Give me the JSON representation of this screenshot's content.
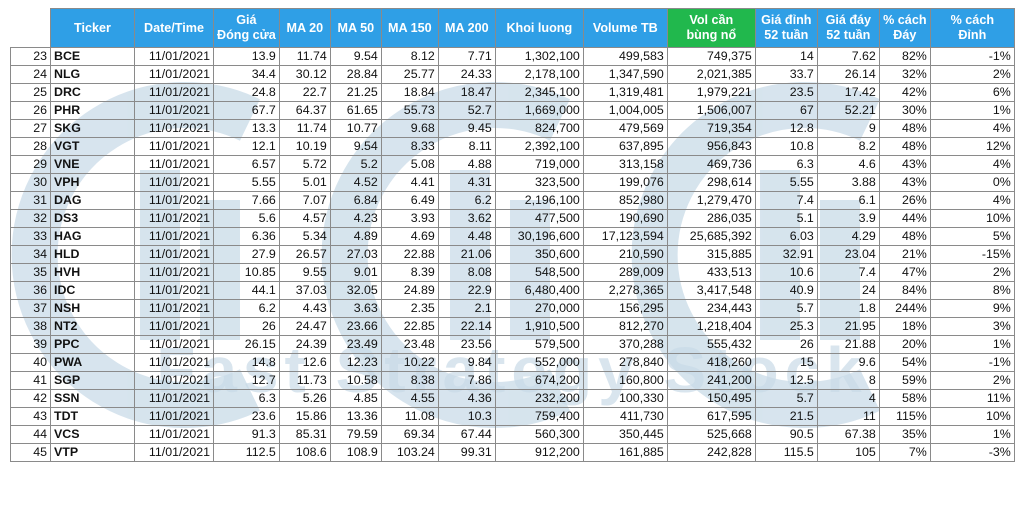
{
  "header": {
    "index": "",
    "ticker": "Ticker",
    "date": "Date/Time",
    "close_line1": "Giá",
    "close_line2": "Đóng cửa",
    "ma20": "MA 20",
    "ma50": "MA 50",
    "ma150": "MA 150",
    "ma200": "MA 200",
    "volume": "Khoi luong",
    "volume_avg": "Volume TB",
    "breakout_line1": "Vol cần",
    "breakout_line2": "bùng nổ",
    "high52_line1": "Giá đỉnh",
    "high52_line2": "52 tuần",
    "low52_line1": "Giá đáy",
    "low52_line2": "52 tuần",
    "pct_low_line1": "% cách",
    "pct_low_line2": "Đáy",
    "pct_high_line1": "% cách",
    "pct_high_line2": "Đỉnh"
  },
  "colors": {
    "header_blue": "#2f9fe6",
    "header_green": "#21b84d",
    "watermark": "#c9dbe8"
  },
  "watermark": {
    "text": "Fast Strategy Stock"
  },
  "rows": [
    {
      "idx": "23",
      "ticker": "BCE",
      "date": "11/01/2021",
      "close": "13.9",
      "ma20": "11.74",
      "ma50": "9.54",
      "ma150": "8.12",
      "ma200": "7.71",
      "vol": "1,302,100",
      "vol_avg": "499,583",
      "vol_break": "749,375",
      "high52": "14",
      "low52": "7.62",
      "pct_low": "82%",
      "pct_high": "-1%"
    },
    {
      "idx": "24",
      "ticker": "NLG",
      "date": "11/01/2021",
      "close": "34.4",
      "ma20": "30.12",
      "ma50": "28.84",
      "ma150": "25.77",
      "ma200": "24.33",
      "vol": "2,178,100",
      "vol_avg": "1,347,590",
      "vol_break": "2,021,385",
      "high52": "33.7",
      "low52": "26.14",
      "pct_low": "32%",
      "pct_high": "2%"
    },
    {
      "idx": "25",
      "ticker": "DRC",
      "date": "11/01/2021",
      "close": "24.8",
      "ma20": "22.7",
      "ma50": "21.25",
      "ma150": "18.84",
      "ma200": "18.47",
      "vol": "2,345,100",
      "vol_avg": "1,319,481",
      "vol_break": "1,979,221",
      "high52": "23.5",
      "low52": "17.42",
      "pct_low": "42%",
      "pct_high": "6%"
    },
    {
      "idx": "26",
      "ticker": "PHR",
      "date": "11/01/2021",
      "close": "67.7",
      "ma20": "64.37",
      "ma50": "61.65",
      "ma150": "55.73",
      "ma200": "52.7",
      "vol": "1,669,000",
      "vol_avg": "1,004,005",
      "vol_break": "1,506,007",
      "high52": "67",
      "low52": "52.21",
      "pct_low": "30%",
      "pct_high": "1%"
    },
    {
      "idx": "27",
      "ticker": "SKG",
      "date": "11/01/2021",
      "close": "13.3",
      "ma20": "11.74",
      "ma50": "10.77",
      "ma150": "9.68",
      "ma200": "9.45",
      "vol": "824,700",
      "vol_avg": "479,569",
      "vol_break": "719,354",
      "high52": "12.8",
      "low52": "9",
      "pct_low": "48%",
      "pct_high": "4%"
    },
    {
      "idx": "28",
      "ticker": "VGT",
      "date": "11/01/2021",
      "close": "12.1",
      "ma20": "10.19",
      "ma50": "9.54",
      "ma150": "8.33",
      "ma200": "8.11",
      "vol": "2,392,100",
      "vol_avg": "637,895",
      "vol_break": "956,843",
      "high52": "10.8",
      "low52": "8.2",
      "pct_low": "48%",
      "pct_high": "12%"
    },
    {
      "idx": "29",
      "ticker": "VNE",
      "date": "11/01/2021",
      "close": "6.57",
      "ma20": "5.72",
      "ma50": "5.2",
      "ma150": "5.08",
      "ma200": "4.88",
      "vol": "719,000",
      "vol_avg": "313,158",
      "vol_break": "469,736",
      "high52": "6.3",
      "low52": "4.6",
      "pct_low": "43%",
      "pct_high": "4%"
    },
    {
      "idx": "30",
      "ticker": "VPH",
      "date": "11/01/2021",
      "close": "5.55",
      "ma20": "5.01",
      "ma50": "4.52",
      "ma150": "4.41",
      "ma200": "4.31",
      "vol": "323,500",
      "vol_avg": "199,076",
      "vol_break": "298,614",
      "high52": "5.55",
      "low52": "3.88",
      "pct_low": "43%",
      "pct_high": "0%"
    },
    {
      "idx": "31",
      "ticker": "DAG",
      "date": "11/01/2021",
      "close": "7.66",
      "ma20": "7.07",
      "ma50": "6.84",
      "ma150": "6.49",
      "ma200": "6.2",
      "vol": "2,196,100",
      "vol_avg": "852,980",
      "vol_break": "1,279,470",
      "high52": "7.4",
      "low52": "6.1",
      "pct_low": "26%",
      "pct_high": "4%"
    },
    {
      "idx": "32",
      "ticker": "DS3",
      "date": "11/01/2021",
      "close": "5.6",
      "ma20": "4.57",
      "ma50": "4.23",
      "ma150": "3.93",
      "ma200": "3.62",
      "vol": "477,500",
      "vol_avg": "190,690",
      "vol_break": "286,035",
      "high52": "5.1",
      "low52": "3.9",
      "pct_low": "44%",
      "pct_high": "10%"
    },
    {
      "idx": "33",
      "ticker": "HAG",
      "date": "11/01/2021",
      "close": "6.36",
      "ma20": "5.34",
      "ma50": "4.89",
      "ma150": "4.69",
      "ma200": "4.48",
      "vol": "30,196,600",
      "vol_avg": "17,123,594",
      "vol_break": "25,685,392",
      "high52": "6.03",
      "low52": "4.29",
      "pct_low": "48%",
      "pct_high": "5%"
    },
    {
      "idx": "34",
      "ticker": "HLD",
      "date": "11/01/2021",
      "close": "27.9",
      "ma20": "26.57",
      "ma50": "27.03",
      "ma150": "22.88",
      "ma200": "21.06",
      "vol": "350,600",
      "vol_avg": "210,590",
      "vol_break": "315,885",
      "high52": "32.91",
      "low52": "23.04",
      "pct_low": "21%",
      "pct_high": "-15%"
    },
    {
      "idx": "35",
      "ticker": "HVH",
      "date": "11/01/2021",
      "close": "10.85",
      "ma20": "9.55",
      "ma50": "9.01",
      "ma150": "8.39",
      "ma200": "8.08",
      "vol": "548,500",
      "vol_avg": "289,009",
      "vol_break": "433,513",
      "high52": "10.6",
      "low52": "7.4",
      "pct_low": "47%",
      "pct_high": "2%"
    },
    {
      "idx": "36",
      "ticker": "IDC",
      "date": "11/01/2021",
      "close": "44.1",
      "ma20": "37.03",
      "ma50": "32.05",
      "ma150": "24.89",
      "ma200": "22.9",
      "vol": "6,480,400",
      "vol_avg": "2,278,365",
      "vol_break": "3,417,548",
      "high52": "40.9",
      "low52": "24",
      "pct_low": "84%",
      "pct_high": "8%"
    },
    {
      "idx": "37",
      "ticker": "NSH",
      "date": "11/01/2021",
      "close": "6.2",
      "ma20": "4.43",
      "ma50": "3.63",
      "ma150": "2.35",
      "ma200": "2.1",
      "vol": "270,000",
      "vol_avg": "156,295",
      "vol_break": "234,443",
      "high52": "5.7",
      "low52": "1.8",
      "pct_low": "244%",
      "pct_high": "9%"
    },
    {
      "idx": "38",
      "ticker": "NT2",
      "date": "11/01/2021",
      "close": "26",
      "ma20": "24.47",
      "ma50": "23.66",
      "ma150": "22.85",
      "ma200": "22.14",
      "vol": "1,910,500",
      "vol_avg": "812,270",
      "vol_break": "1,218,404",
      "high52": "25.3",
      "low52": "21.95",
      "pct_low": "18%",
      "pct_high": "3%"
    },
    {
      "idx": "39",
      "ticker": "PPC",
      "date": "11/01/2021",
      "close": "26.15",
      "ma20": "24.39",
      "ma50": "23.49",
      "ma150": "23.48",
      "ma200": "23.56",
      "vol": "579,500",
      "vol_avg": "370,288",
      "vol_break": "555,432",
      "high52": "26",
      "low52": "21.88",
      "pct_low": "20%",
      "pct_high": "1%"
    },
    {
      "idx": "40",
      "ticker": "PWA",
      "date": "11/01/2021",
      "close": "14.8",
      "ma20": "12.6",
      "ma50": "12.23",
      "ma150": "10.22",
      "ma200": "9.84",
      "vol": "552,000",
      "vol_avg": "278,840",
      "vol_break": "418,260",
      "high52": "15",
      "low52": "9.6",
      "pct_low": "54%",
      "pct_high": "-1%"
    },
    {
      "idx": "41",
      "ticker": "SGP",
      "date": "11/01/2021",
      "close": "12.7",
      "ma20": "11.73",
      "ma50": "10.58",
      "ma150": "8.38",
      "ma200": "7.86",
      "vol": "674,200",
      "vol_avg": "160,800",
      "vol_break": "241,200",
      "high52": "12.5",
      "low52": "8",
      "pct_low": "59%",
      "pct_high": "2%"
    },
    {
      "idx": "42",
      "ticker": "SSN",
      "date": "11/01/2021",
      "close": "6.3",
      "ma20": "5.26",
      "ma50": "4.85",
      "ma150": "4.55",
      "ma200": "4.36",
      "vol": "232,200",
      "vol_avg": "100,330",
      "vol_break": "150,495",
      "high52": "5.7",
      "low52": "4",
      "pct_low": "58%",
      "pct_high": "11%"
    },
    {
      "idx": "43",
      "ticker": "TDT",
      "date": "11/01/2021",
      "close": "23.6",
      "ma20": "15.86",
      "ma50": "13.36",
      "ma150": "11.08",
      "ma200": "10.3",
      "vol": "759,400",
      "vol_avg": "411,730",
      "vol_break": "617,595",
      "high52": "21.5",
      "low52": "11",
      "pct_low": "115%",
      "pct_high": "10%"
    },
    {
      "idx": "44",
      "ticker": "VCS",
      "date": "11/01/2021",
      "close": "91.3",
      "ma20": "85.31",
      "ma50": "79.59",
      "ma150": "69.34",
      "ma200": "67.44",
      "vol": "560,300",
      "vol_avg": "350,445",
      "vol_break": "525,668",
      "high52": "90.5",
      "low52": "67.38",
      "pct_low": "35%",
      "pct_high": "1%"
    },
    {
      "idx": "45",
      "ticker": "VTP",
      "date": "11/01/2021",
      "close": "112.5",
      "ma20": "108.6",
      "ma50": "108.9",
      "ma150": "103.24",
      "ma200": "99.31",
      "vol": "912,200",
      "vol_avg": "161,885",
      "vol_break": "242,828",
      "high52": "115.5",
      "low52": "105",
      "pct_low": "7%",
      "pct_high": "-3%"
    }
  ]
}
